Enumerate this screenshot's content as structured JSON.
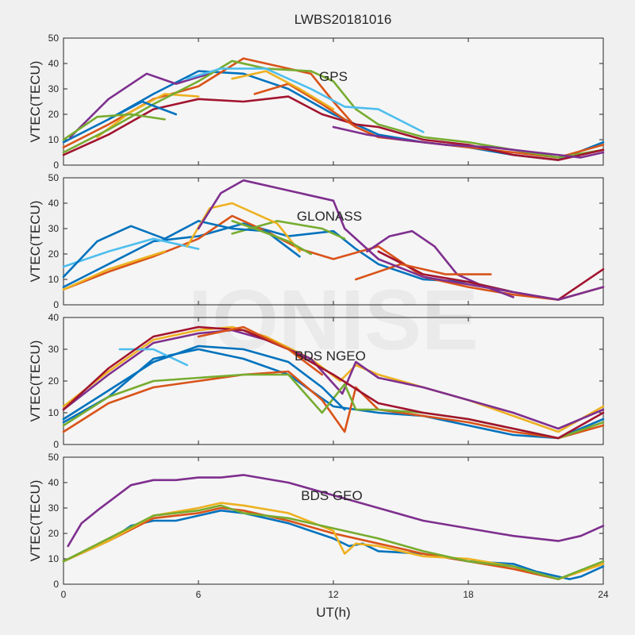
{
  "title": "LWBS20181016",
  "watermark": "IONISE",
  "xlabel": "UT(h)",
  "xticks": [
    "0",
    "6",
    "12",
    "18",
    "24"
  ],
  "series_colors": [
    "#0072BD",
    "#D95319",
    "#EDB120",
    "#7E2F8E",
    "#77AC30",
    "#4DBEEE",
    "#A2142F"
  ],
  "chart_data": [
    {
      "type": "line",
      "label": "GPS",
      "ylabel": "VTEC(TECU)",
      "xlim": [
        0,
        24
      ],
      "ylim": [
        0,
        50
      ],
      "yticks": [
        0,
        10,
        20,
        30,
        40,
        50
      ],
      "series": [
        {
          "x": [
            0,
            2,
            4,
            6,
            8,
            10,
            12,
            14,
            16,
            18,
            20,
            22,
            24
          ],
          "values": [
            9,
            18,
            28,
            37,
            36,
            30,
            20,
            12,
            9,
            7,
            4,
            2,
            9
          ]
        },
        {
          "x": [
            0,
            2,
            4,
            6,
            8,
            10,
            11,
            12,
            13,
            14,
            16,
            18,
            20,
            22,
            24
          ],
          "values": [
            7,
            16,
            26,
            31,
            42,
            38,
            36,
            25,
            15,
            11,
            9,
            7,
            5,
            3,
            8
          ]
        },
        {
          "x": [
            1.5,
            3,
            4.5,
            6
          ],
          "values": [
            11,
            21,
            28,
            27
          ]
        },
        {
          "x": [
            0.3,
            2,
            3.7,
            5,
            6.5
          ],
          "values": [
            11,
            26,
            36,
            32,
            36
          ]
        },
        {
          "x": [
            0,
            2,
            4,
            6,
            7.5,
            9,
            11,
            12,
            13,
            14,
            16,
            18,
            20,
            22,
            24
          ],
          "values": [
            5,
            14,
            24,
            33,
            41,
            38,
            37,
            33,
            22,
            16,
            11,
            9,
            6,
            3,
            6
          ]
        },
        {
          "x": [
            5.5,
            7,
            9,
            11,
            12.5,
            14,
            16
          ],
          "values": [
            34,
            38,
            38,
            30,
            23,
            22,
            13
          ]
        },
        {
          "x": [
            0,
            2,
            4,
            6,
            8,
            10,
            11.5,
            13,
            14,
            16,
            18,
            20,
            22,
            24
          ],
          "values": [
            4,
            12,
            22,
            26,
            25,
            27,
            20,
            16,
            15,
            10,
            8,
            4,
            2,
            6
          ]
        },
        {
          "x": [
            2,
            3.5,
            5
          ],
          "values": [
            18,
            25,
            20
          ]
        },
        {
          "x": [
            8.5,
            10,
            11.5,
            13,
            14
          ],
          "values": [
            28,
            32,
            24,
            15,
            11
          ]
        },
        {
          "x": [
            7.5,
            9,
            10.5,
            12
          ],
          "values": [
            34,
            37,
            30,
            22
          ]
        },
        {
          "x": [
            12,
            13.5,
            15,
            17,
            19,
            21,
            23,
            24
          ],
          "values": [
            15,
            12,
            10,
            8,
            7,
            5,
            3,
            5
          ]
        },
        {
          "x": [
            0,
            1.5,
            3,
            4.5
          ],
          "values": [
            10,
            19,
            20,
            18
          ]
        }
      ]
    },
    {
      "type": "line",
      "label": "GLONASS",
      "ylabel": "VTEC(TECU)",
      "xlim": [
        0,
        24
      ],
      "ylim": [
        0,
        50
      ],
      "yticks": [
        0,
        10,
        20,
        30,
        40,
        50
      ],
      "series": [
        {
          "x": [
            0,
            2,
            4,
            6,
            8,
            10,
            12,
            13,
            14,
            16,
            18,
            20
          ],
          "values": [
            7,
            16,
            25,
            27,
            32,
            27,
            29,
            22,
            16,
            10,
            9,
            5
          ]
        },
        {
          "x": [
            0,
            2,
            4,
            6,
            7.5,
            9,
            10.5,
            12,
            14,
            16,
            18,
            20,
            22,
            24
          ],
          "values": [
            6,
            13,
            19,
            26,
            35,
            29,
            22,
            18,
            23,
            11,
            7,
            4,
            2,
            7
          ]
        },
        {
          "x": [
            0,
            2,
            4.5
          ],
          "values": [
            6,
            14,
            21
          ]
        },
        {
          "x": [
            13.5,
            14.5,
            15.5,
            16.5,
            17.5,
            18.5,
            20
          ],
          "values": [
            21,
            27,
            29,
            23,
            12,
            8,
            3
          ]
        },
        {
          "x": [
            7.5,
            9.5,
            11.5,
            12.5
          ],
          "values": [
            28,
            33,
            30,
            26
          ]
        },
        {
          "x": [
            0,
            2,
            4,
            6
          ],
          "values": [
            15,
            21,
            26,
            22
          ]
        },
        {
          "x": [
            14,
            16,
            18,
            20,
            22,
            24
          ],
          "values": [
            21,
            12,
            9,
            5,
            2,
            14
          ]
        },
        {
          "x": [
            0,
            1.5,
            3,
            4.5,
            6,
            7.5,
            9,
            10.5
          ],
          "values": [
            11,
            25,
            31,
            26,
            33,
            30,
            29,
            19
          ]
        },
        {
          "x": [
            13,
            15,
            17,
            19
          ],
          "values": [
            10,
            16,
            12,
            12
          ]
        },
        {
          "x": [
            5.5,
            6.5,
            7.5,
            9.5,
            10.5
          ],
          "values": [
            23,
            38,
            40,
            32,
            21
          ]
        },
        {
          "x": [
            6,
            7,
            8,
            10,
            12,
            12.5,
            14,
            16,
            18,
            20,
            22,
            24
          ],
          "values": [
            30,
            44,
            49,
            45,
            41,
            30,
            18,
            11,
            8,
            5,
            2,
            7
          ]
        },
        {
          "x": [
            7.5,
            8.5,
            10,
            11
          ],
          "values": [
            33,
            30,
            25,
            20
          ]
        }
      ]
    },
    {
      "type": "line",
      "label": "BDS NGEO",
      "ylabel": "VTEC(TECU)",
      "xlim": [
        0,
        24
      ],
      "ylim": [
        0,
        40
      ],
      "yticks": [
        0,
        10,
        20,
        30,
        40
      ],
      "series": [
        {
          "x": [
            0,
            2,
            4,
            6,
            8,
            10,
            12,
            14,
            16,
            18,
            20,
            22,
            24
          ],
          "values": [
            7,
            15,
            27,
            30,
            27,
            22,
            12,
            10,
            9,
            6,
            3,
            2,
            8
          ]
        },
        {
          "x": [
            0,
            2,
            4,
            6,
            8,
            10,
            11.5,
            12.5,
            13,
            14,
            16,
            18,
            20,
            22,
            24
          ],
          "values": [
            4,
            13,
            18,
            20,
            22,
            23,
            14,
            4,
            18,
            11,
            9,
            7,
            4,
            2,
            6
          ]
        },
        {
          "x": [
            0,
            2,
            4,
            6,
            7.5,
            9,
            11,
            12.3,
            13,
            14,
            16,
            18,
            20,
            22,
            24
          ],
          "values": [
            12,
            23,
            33,
            36,
            37,
            34,
            27,
            20,
            25,
            22,
            18,
            14,
            9,
            4,
            12
          ]
        },
        {
          "x": [
            0,
            2,
            4,
            6,
            7.5,
            9,
            11,
            12.4,
            13,
            14,
            16,
            18,
            20,
            22,
            24
          ],
          "values": [
            11,
            22,
            32,
            35,
            36,
            33,
            27,
            16,
            26,
            21,
            18,
            14,
            10,
            5,
            11
          ]
        },
        {
          "x": [
            0,
            2,
            4,
            6,
            8,
            10,
            11.5,
            12.5,
            13,
            14,
            16,
            18,
            20,
            22,
            24
          ],
          "values": [
            6,
            15,
            20,
            21,
            22,
            22,
            10,
            19,
            11,
            11,
            10,
            8,
            5,
            2,
            7
          ]
        },
        {
          "x": [
            2.5,
            4,
            5.5
          ],
          "values": [
            30,
            30,
            25
          ]
        },
        {
          "x": [
            0,
            2,
            4,
            6,
            8,
            10,
            12,
            14,
            16,
            18,
            20,
            22,
            24
          ],
          "values": [
            11,
            24,
            34,
            37,
            36,
            30,
            22,
            13,
            10,
            8,
            5,
            2,
            10
          ]
        },
        {
          "x": [
            0,
            2,
            4,
            6,
            8,
            10,
            11.5,
            12.5
          ],
          "values": [
            8,
            17,
            26,
            31,
            30,
            26,
            18,
            11
          ]
        },
        {
          "x": [
            6,
            8,
            10,
            11.5
          ],
          "values": [
            34,
            37,
            30,
            22
          ]
        }
      ]
    },
    {
      "type": "line",
      "label": "BDS GEO",
      "ylabel": "VTEC(TECU)",
      "xlim": [
        0,
        24
      ],
      "ylim": [
        0,
        50
      ],
      "yticks": [
        0,
        10,
        20,
        30,
        40,
        50
      ],
      "series": [
        {
          "x": [
            0,
            1,
            2,
            3,
            4,
            5,
            6,
            7,
            8,
            10,
            12,
            12.7,
            13.3,
            14,
            16,
            18,
            20,
            21,
            22,
            22.5,
            23,
            24
          ],
          "values": [
            9,
            13,
            17,
            23,
            25,
            25,
            27,
            29,
            28,
            24,
            18,
            15,
            16,
            13,
            12,
            9,
            8,
            5,
            3,
            2,
            3,
            7
          ]
        },
        {
          "x": [
            0,
            2,
            4,
            6,
            7,
            8,
            10,
            12,
            14,
            16,
            18,
            20,
            22,
            24
          ],
          "values": [
            9,
            17,
            26,
            28,
            30,
            29,
            25,
            20,
            16,
            12,
            9,
            6,
            2,
            8
          ]
        },
        {
          "x": [
            0,
            2,
            4,
            6,
            7,
            8,
            10,
            12,
            12.5,
            13,
            14,
            16,
            18,
            20,
            22,
            24
          ],
          "values": [
            9,
            17,
            27,
            30,
            32,
            31,
            28,
            21,
            12,
            16,
            15,
            11,
            10,
            7,
            2,
            8
          ]
        },
        {
          "x": [
            0.2,
            0.8,
            1.5,
            3,
            4,
            5,
            6,
            7,
            8,
            10,
            12,
            14,
            16,
            18,
            20,
            22,
            23,
            24
          ],
          "values": [
            15,
            24,
            29,
            39,
            41,
            41,
            42,
            42,
            43,
            40,
            35,
            30,
            25,
            22,
            19,
            17,
            19,
            23
          ]
        },
        {
          "x": [
            0,
            2,
            4,
            6,
            7,
            8,
            10,
            12,
            14,
            16,
            18,
            20,
            22,
            24
          ],
          "values": [
            9,
            18,
            27,
            29,
            31,
            28,
            26,
            22,
            18,
            13,
            9,
            7,
            2,
            9
          ]
        }
      ]
    }
  ]
}
